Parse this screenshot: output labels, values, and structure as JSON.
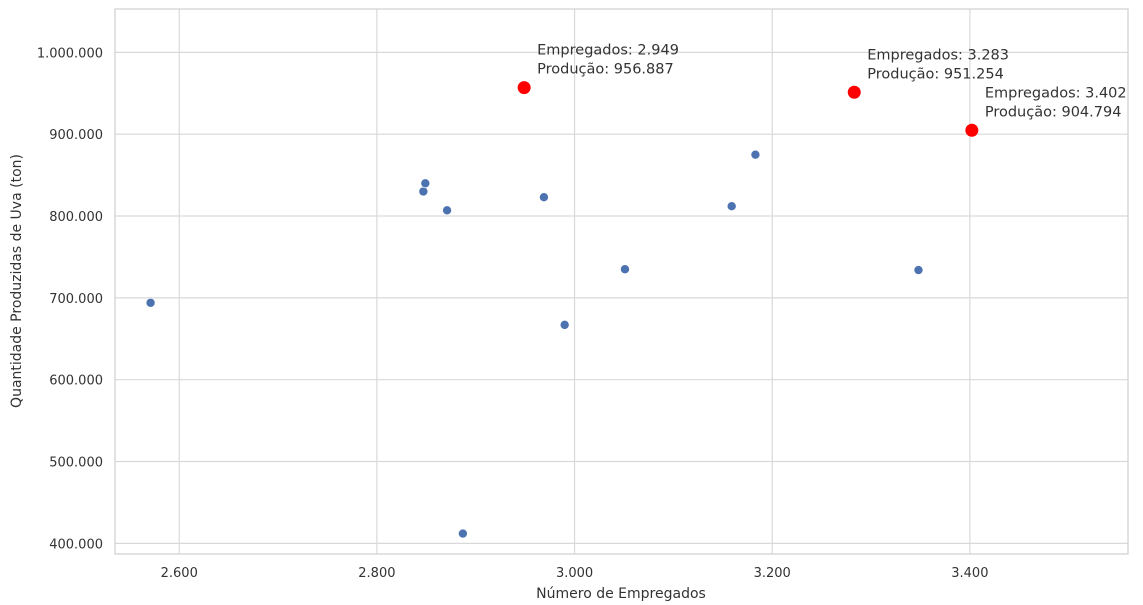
{
  "chart_data": {
    "type": "scatter",
    "title": "",
    "xlabel": "Número de Empregados",
    "ylabel": "Quantidade Produzidas de Uva (ton)",
    "xlim": [
      2535,
      3560
    ],
    "ylim": [
      387000,
      1053000
    ],
    "x_ticks": [
      2600,
      2800,
      3000,
      3200,
      3400
    ],
    "x_tick_labels": [
      "2.600",
      "2.800",
      "3.000",
      "3.200",
      "3.400"
    ],
    "y_ticks": [
      400000,
      500000,
      600000,
      700000,
      800000,
      900000,
      1000000
    ],
    "y_tick_labels": [
      "400.000",
      "500.000",
      "600.000",
      "700.000",
      "800.000",
      "900.000",
      "1.000.000"
    ],
    "grid": true,
    "series": [
      {
        "color": "#4c72b0",
        "points": [
          {
            "x": 2571,
            "y": 694000
          },
          {
            "x": 2847,
            "y": 830000
          },
          {
            "x": 2849,
            "y": 840000
          },
          {
            "x": 2871,
            "y": 807000
          },
          {
            "x": 2887,
            "y": 412000
          },
          {
            "x": 2969,
            "y": 823000
          },
          {
            "x": 2990,
            "y": 667000
          },
          {
            "x": 3051,
            "y": 735000
          },
          {
            "x": 3159,
            "y": 812000
          },
          {
            "x": 3183,
            "y": 875000
          },
          {
            "x": 3348,
            "y": 734000
          }
        ]
      },
      {
        "color": "#ff0000",
        "points": [
          {
            "x": 2949,
            "y": 956887
          },
          {
            "x": 3283,
            "y": 951254
          },
          {
            "x": 3402,
            "y": 904794
          }
        ]
      }
    ],
    "annotations": [
      {
        "x": 2949,
        "y": 956887,
        "line1": "Empregados: 2.949",
        "line2": "Produção: 956.887"
      },
      {
        "x": 3283,
        "y": 951254,
        "line1": "Empregados: 3.283",
        "line2": "Produção: 951.254"
      },
      {
        "x": 3402,
        "y": 904794,
        "line1": "Empregados: 3.402",
        "line2": "Produção: 904.794"
      }
    ]
  }
}
